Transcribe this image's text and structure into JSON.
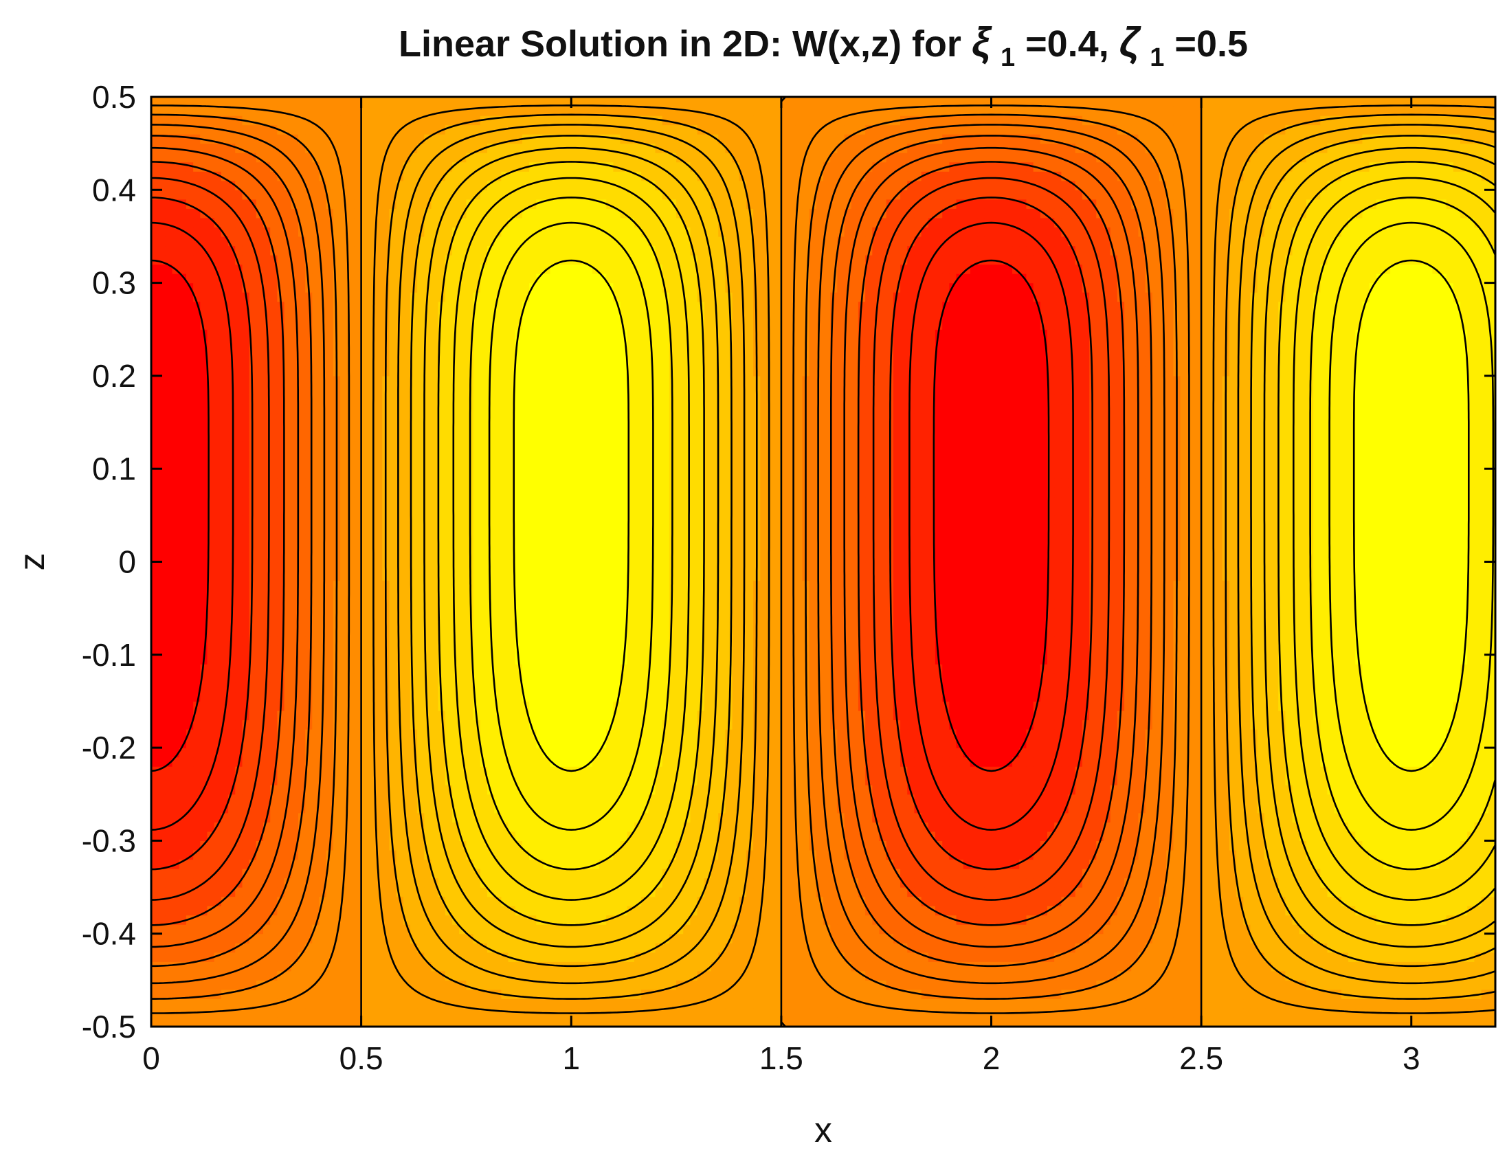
{
  "chart_data": {
    "type": "heatmap",
    "subtype": "filled-contour",
    "title": {
      "prefix": "Linear Solution in 2D: W(x,z) for",
      "xi_symbol": "ξ",
      "xi_subscript": "1",
      "xi_value": "=0.4,",
      "zeta_symbol": "ζ",
      "zeta_subscript": "1",
      "zeta_value": "=0.5"
    },
    "xlabel": "x",
    "ylabel": "z",
    "xlim": [
      0,
      3.2
    ],
    "ylim": [
      -0.5,
      0.5
    ],
    "xticks": [
      0,
      0.5,
      1,
      1.5,
      2,
      2.5,
      3
    ],
    "xtick_labels": [
      "0",
      "0.5",
      "1",
      "1.5",
      "2",
      "2.5",
      "3"
    ],
    "yticks": [
      -0.5,
      -0.4,
      -0.3,
      -0.2,
      -0.1,
      0,
      0.1,
      0.2,
      0.3,
      0.4,
      0.5
    ],
    "ytick_labels": [
      "-0.5",
      "-0.4",
      "-0.3",
      "-0.2",
      "-0.1",
      "0",
      "0.1",
      "0.2",
      "0.3",
      "0.4",
      "0.5"
    ],
    "grid": false,
    "colormap": [
      "#ff0000",
      "#ff2200",
      "#ff4400",
      "#ff6600",
      "#ff7a00",
      "#ff8c00",
      "#ffa000",
      "#ffb400",
      "#ffc800",
      "#ffdc00",
      "#ffee00",
      "#ffff00"
    ],
    "contour_line_color": "#000000",
    "extrema": [
      {
        "x": 0,
        "z": 0.11,
        "kind": "min"
      },
      {
        "x": 1,
        "z": 0.11,
        "kind": "max"
      },
      {
        "x": 2,
        "z": 0.11,
        "kind": "min"
      },
      {
        "x": 3,
        "z": 0.11,
        "kind": "max"
      }
    ],
    "x_period": 2,
    "contour_levels": 22
  }
}
